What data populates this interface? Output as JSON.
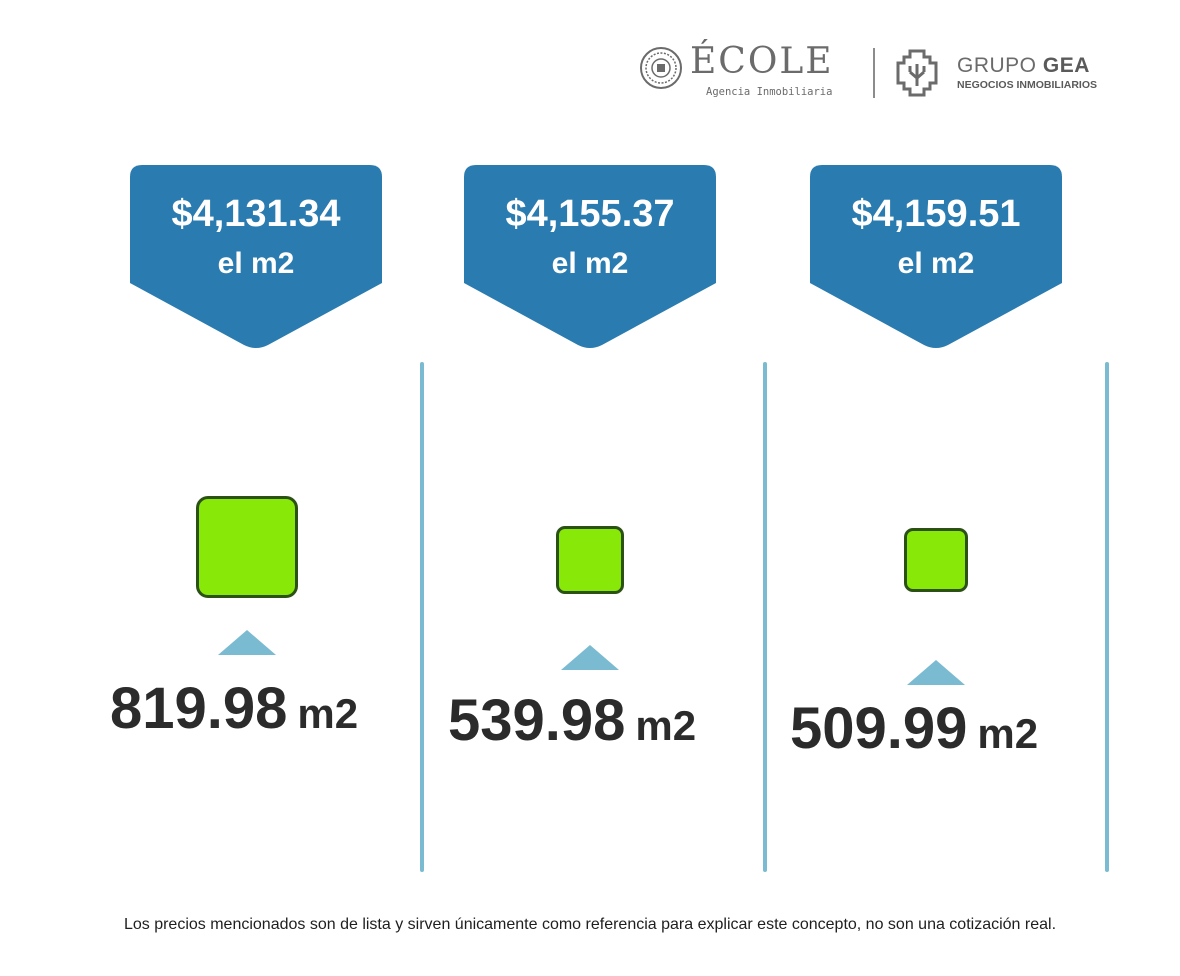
{
  "header": {
    "ecole": {
      "name": "ÉCOLE",
      "subtitle": "Agencia Inmobiliaria"
    },
    "gea": {
      "name_light": "GRUPO",
      "name_bold": "GEA",
      "subtitle": "NEGOCIOS INMOBILIARIOS"
    }
  },
  "colors": {
    "callout": "#2a7bb0",
    "divider": "#7bbbd1",
    "lot_fill": "#88e807",
    "lot_border": "#2b5117",
    "text": "#2b2b2b"
  },
  "lots": [
    {
      "price": "$4,131.34",
      "price_unit": "el m2",
      "area_value": "819.98",
      "area_unit": "m2"
    },
    {
      "price": "$4,155.37",
      "price_unit": "el m2",
      "area_value": "539.98",
      "area_unit": "m2"
    },
    {
      "price": "$4,159.51",
      "price_unit": "el m2",
      "area_value": "509.99",
      "area_unit": "m2"
    }
  ],
  "disclaimer": "Los precios mencionados son de lista y sirven únicamente como referencia para explicar este concepto, no son una cotización real."
}
